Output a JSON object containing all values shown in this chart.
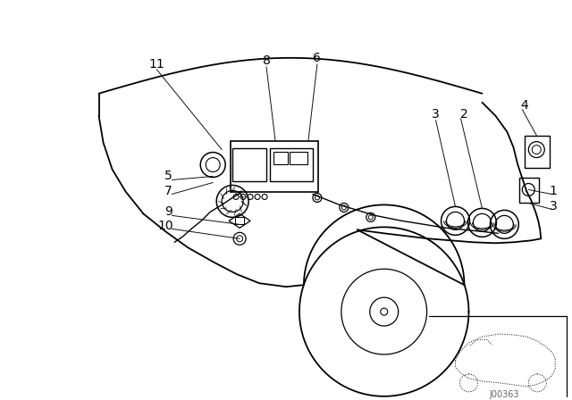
{
  "bg_color": "#ffffff",
  "line_color": "#000000",
  "fig_width": 6.4,
  "fig_height": 4.48,
  "dpi": 100,
  "label_fontsize": 10,
  "watermark": "J00363",
  "watermark_fontsize": 7
}
